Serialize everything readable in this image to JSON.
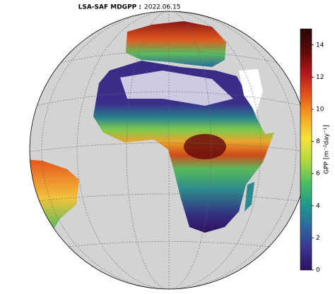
{
  "title": {
    "name": "LSA-SAF MDGPP :",
    "date": "2022.06.15"
  },
  "colorbar": {
    "label": "GPP [m⁻²day⁻¹]",
    "lim": [
      0,
      15
    ],
    "ticks": [
      0,
      2,
      4,
      6,
      8,
      10,
      12,
      14
    ],
    "colormap": [
      "#2d1160",
      "#3a3592",
      "#2b6a9e",
      "#1f9a8a",
      "#4fbf63",
      "#b3d93c",
      "#f5e33a",
      "#f6a521",
      "#e6521c",
      "#b3151b",
      "#5c0a0a",
      "#2a0505"
    ]
  }
}
